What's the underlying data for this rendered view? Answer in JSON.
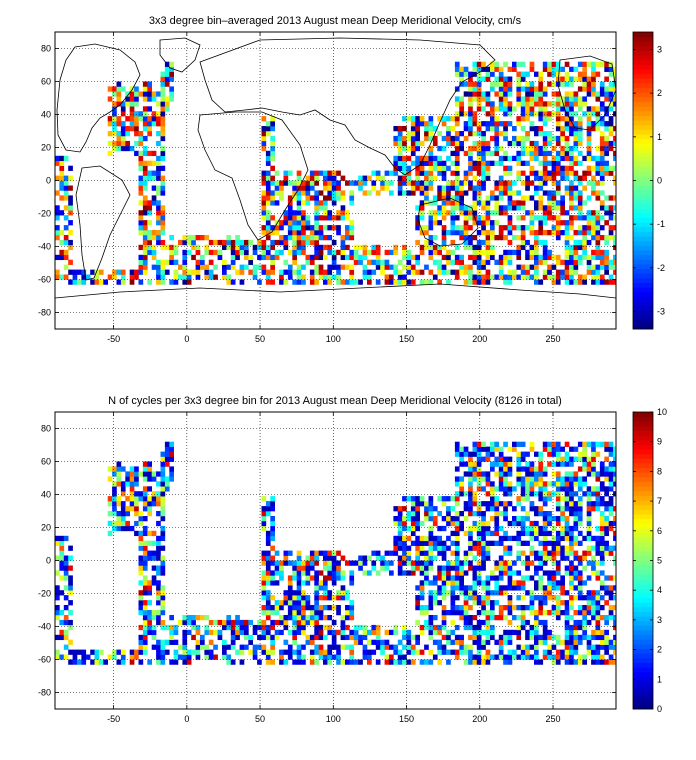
{
  "chart_data": [
    {
      "type": "heatmap",
      "title": "3x3 degree bin–averaged 2013 August mean Deep Meridional Velocity, cm/s",
      "xlabel": "",
      "ylabel": "",
      "xlim": [
        -90,
        293
      ],
      "ylim": [
        -90,
        90
      ],
      "x_ticks": [
        -50,
        0,
        50,
        100,
        150,
        200,
        250
      ],
      "y_ticks": [
        -80,
        -60,
        -40,
        -20,
        0,
        20,
        40,
        60,
        80
      ],
      "grid": true,
      "bin_size_deg": 3,
      "colorbar": {
        "min": -3.4,
        "max": 3.4,
        "ticks": [
          -3,
          -2,
          -1,
          0,
          1,
          2,
          3
        ],
        "colormap": "jet"
      }
    },
    {
      "type": "heatmap",
      "title": "N of cycles per 3x3 degree bin for 2013 August mean Deep Meridional Velocity (8126 in total)",
      "xlabel": "",
      "ylabel": "",
      "xlim": [
        -90,
        293
      ],
      "ylim": [
        -90,
        90
      ],
      "x_ticks": [
        -50,
        0,
        50,
        100,
        150,
        200,
        250
      ],
      "y_ticks": [
        -80,
        -60,
        -40,
        -20,
        0,
        20,
        40,
        60,
        80
      ],
      "grid": true,
      "bin_size_deg": 3,
      "colorbar": {
        "min": 0,
        "max": 10,
        "ticks": [
          0,
          1,
          2,
          3,
          4,
          5,
          6,
          7,
          8,
          9,
          10
        ],
        "colormap": "jet"
      }
    }
  ]
}
